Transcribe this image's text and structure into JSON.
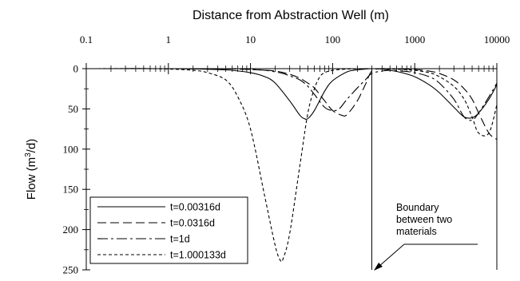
{
  "chart_data": {
    "type": "line",
    "title": "Distance from Abstraction Well (m)",
    "xlabel": "Distance from Abstraction Well (m)",
    "ylabel": "Flow (m3/d)",
    "xscale": "log",
    "xlim": [
      0.1,
      10000
    ],
    "ylim": [
      0,
      250
    ],
    "yinverted": true,
    "xaxis_position": "top",
    "x_ticks": [
      0.1,
      1,
      10,
      100,
      1000,
      10000
    ],
    "x_tick_labels": [
      "0.1",
      "1",
      "10",
      "100",
      "1000",
      "10000"
    ],
    "y_ticks": [
      0,
      50,
      100,
      150,
      200,
      250
    ],
    "y_tick_labels": [
      "0",
      "50",
      "100",
      "150",
      "200",
      "250"
    ],
    "grid": false,
    "legend_position": "bottom-left",
    "series": [
      {
        "name": "t=0.00316d",
        "dash": "solid",
        "x": [
          0.1,
          1,
          2,
          5,
          10,
          15,
          20,
          30,
          40,
          45,
          50,
          60,
          80,
          100,
          150,
          200,
          250,
          300,
          400,
          500,
          700,
          1000,
          1500,
          2000,
          3000,
          4000,
          5000,
          6000,
          8000,
          10000
        ],
        "y": [
          0,
          0,
          0.3,
          1.5,
          5,
          10,
          18,
          40,
          58,
          62,
          62,
          52,
          28,
          15,
          4,
          1.5,
          0.5,
          0,
          0.5,
          2,
          5,
          10,
          20,
          30,
          48,
          60,
          61,
          55,
          38,
          20
        ]
      },
      {
        "name": "t=0.0316d",
        "dash": "longdash",
        "x": [
          0.1,
          1,
          5,
          10,
          20,
          30,
          40,
          50,
          60,
          80,
          100,
          130,
          150,
          200,
          250,
          300,
          400,
          500,
          700,
          1000,
          1500,
          2000,
          3000,
          4000,
          5000,
          6000,
          8000,
          10000
        ],
        "y": [
          0,
          0,
          0.2,
          1,
          3,
          7,
          12,
          18,
          24,
          40,
          52,
          58,
          57,
          40,
          20,
          3,
          0,
          0,
          0.3,
          1,
          3,
          6,
          14,
          25,
          38,
          55,
          80,
          88
        ]
      },
      {
        "name": "t=1d",
        "dash": "dashdot",
        "x": [
          0.1,
          1,
          5,
          10,
          15,
          20,
          25,
          30,
          40,
          50,
          60,
          80,
          100,
          120,
          150,
          200,
          250,
          300,
          400,
          500,
          700,
          1000,
          1500,
          2000,
          3000,
          4000,
          5000,
          6000,
          8000,
          10000
        ],
        "y": [
          0,
          0,
          0.2,
          1,
          2,
          4,
          6,
          9,
          14,
          22,
          32,
          48,
          52,
          50,
          38,
          24,
          14,
          6,
          3,
          2,
          3,
          5,
          10,
          18,
          38,
          60,
          64,
          55,
          35,
          18
        ]
      },
      {
        "name": "t=1.000133d",
        "dash": "shortdash",
        "x": [
          0.1,
          0.5,
          1,
          2,
          3,
          5,
          7,
          10,
          15,
          20,
          23,
          25,
          30,
          40,
          50,
          60,
          70,
          80,
          100,
          150,
          200,
          250,
          300,
          400,
          500,
          700,
          1000,
          1500,
          2000,
          3000,
          4000,
          5000,
          6000,
          8000,
          10000
        ],
        "y": [
          0,
          0,
          0.5,
          2,
          5,
          14,
          35,
          75,
          160,
          220,
          238,
          236,
          205,
          120,
          55,
          25,
          10,
          5,
          2,
          0.5,
          0.2,
          0,
          0,
          0.3,
          0.5,
          1,
          2,
          5,
          10,
          22,
          38,
          60,
          80,
          80,
          45
        ]
      }
    ],
    "annotation": {
      "lines": [
        "Boundary",
        "between two",
        "materials"
      ],
      "boundary_x": 300
    }
  }
}
